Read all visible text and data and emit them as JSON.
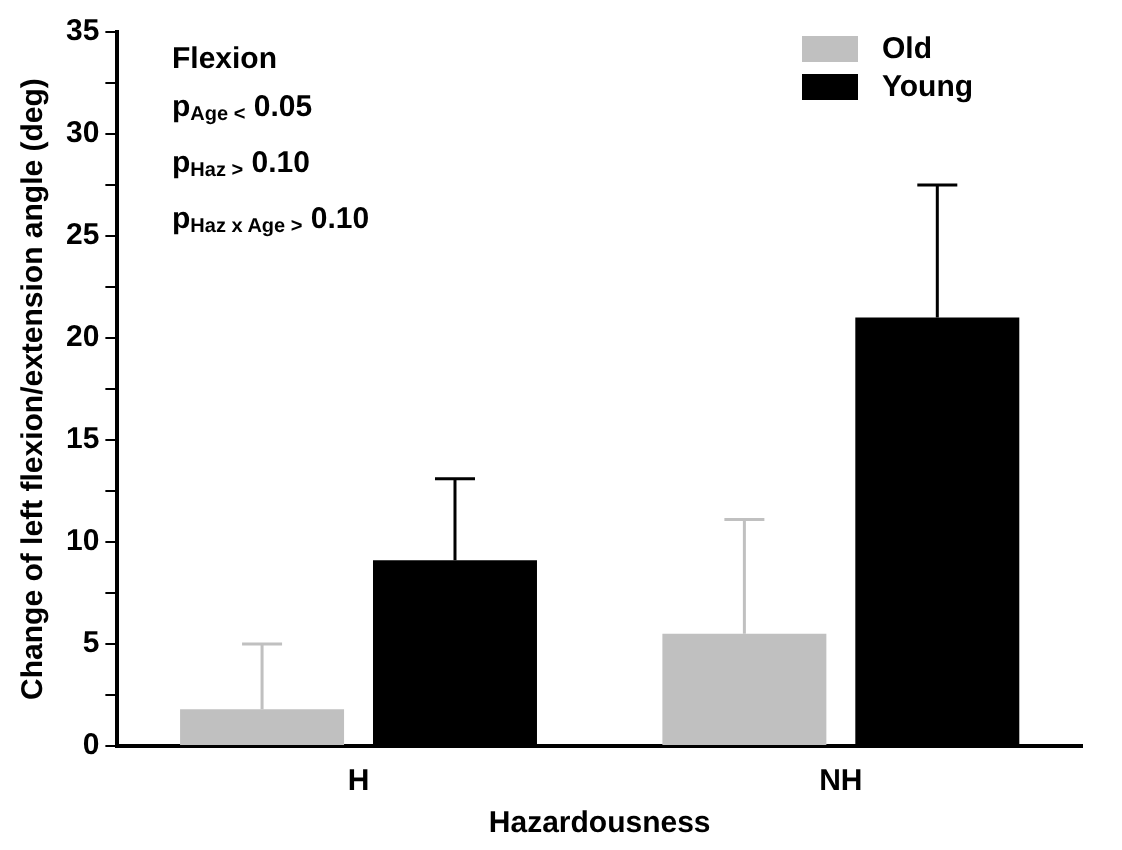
{
  "chart_data": {
    "type": "bar",
    "xlabel": "Hazardousness",
    "ylabel": "Change of left flexion/extension angle (deg)",
    "categories": [
      "H",
      "NH"
    ],
    "series": [
      {
        "name": "Old",
        "color": "#c0c0c0",
        "values": [
          1.8,
          5.5
        ],
        "errors": [
          [
            1.8,
            5
          ],
          [
            5.5,
            11.1
          ]
        ]
      },
      {
        "name": "Young",
        "color": "#000000",
        "values": [
          9.1,
          21
        ],
        "errors": [
          [
            9.1,
            13.1
          ],
          [
            21,
            27.5
          ]
        ]
      }
    ],
    "ylim": [
      0,
      35
    ],
    "yticks": [
      0,
      {
        "value": 2.5,
        "label": null
      },
      5,
      {
        "value": 7.5,
        "label": null
      },
      10,
      {
        "value": 12.5,
        "label": null
      },
      15,
      {
        "value": 17.5,
        "label": null
      },
      20,
      {
        "value": 22.5,
        "label": null
      },
      25,
      {
        "value": 27.5,
        "label": null
      },
      30,
      {
        "value": 32.5,
        "label": null
      },
      35
    ],
    "grid": false,
    "legend": "top right",
    "annotations": [
      "Flexion",
      "p$_{Age <}$ 0.05",
      "p$_{Haz >}$ 0.10",
      "p$_{Haz x Age >}$ 0.10"
    ]
  }
}
